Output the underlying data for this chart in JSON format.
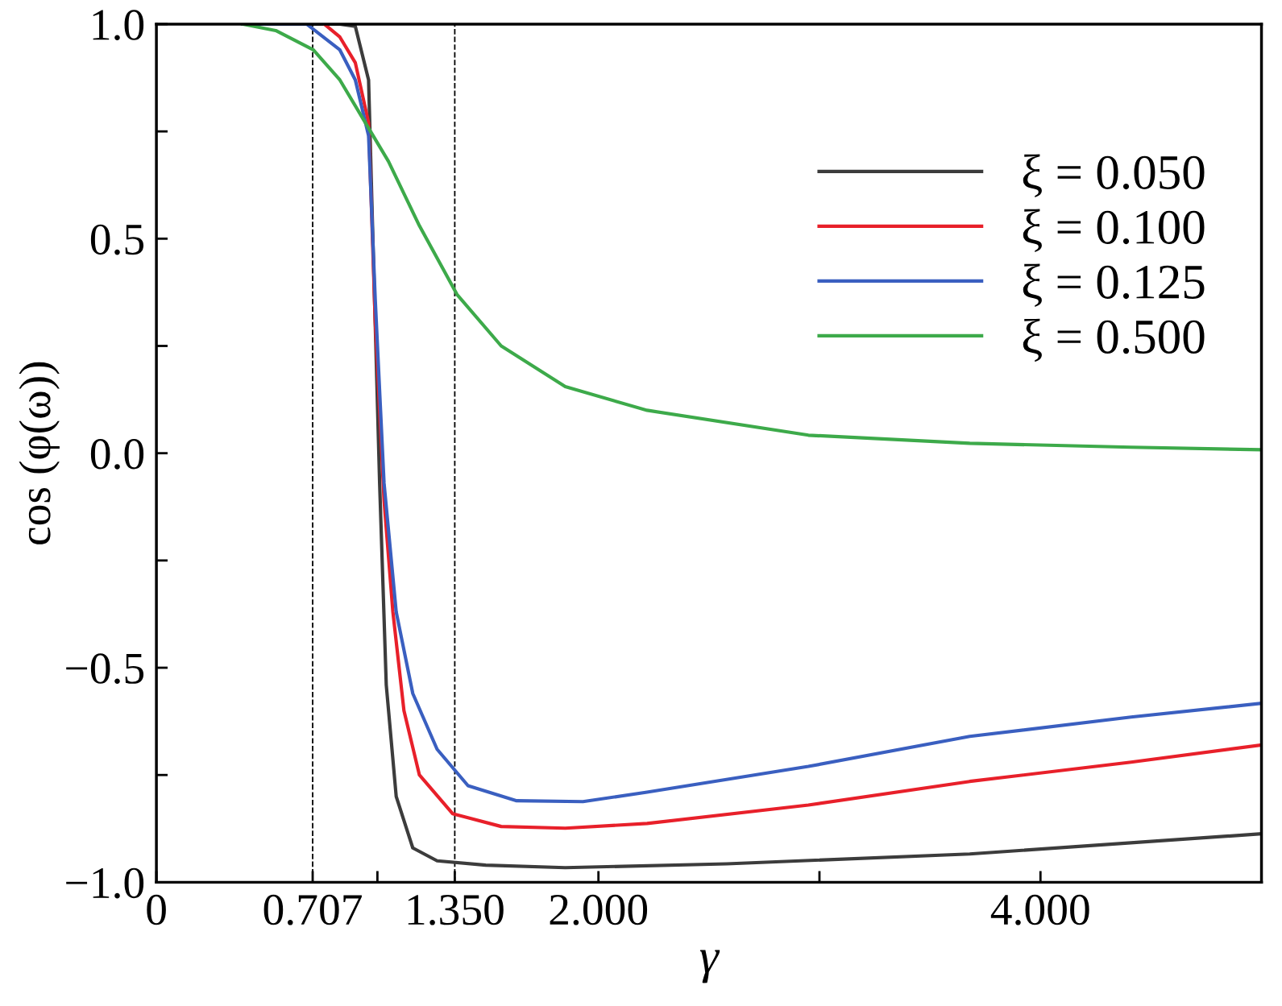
{
  "chart_data": {
    "type": "line",
    "xlabel": "γ",
    "ylabel": "cos (φ(ω))",
    "xlim": [
      0,
      5.0
    ],
    "ylim": [
      -1.0,
      1.0
    ],
    "xticks": [
      {
        "value": 0,
        "label": "0"
      },
      {
        "value": 0.707,
        "label": "0.707"
      },
      {
        "value": 1.0,
        "label": null
      },
      {
        "value": 1.35,
        "label": "1.350"
      },
      {
        "value": 2.0,
        "label": "2.000"
      },
      {
        "value": 3.0,
        "label": null
      },
      {
        "value": 4.0,
        "label": "4.000"
      }
    ],
    "yticks": [
      {
        "value": -1.0,
        "label": "−1.0"
      },
      {
        "value": -0.75,
        "label": null
      },
      {
        "value": -0.5,
        "label": "−0.5"
      },
      {
        "value": -0.25,
        "label": null
      },
      {
        "value": 0.0,
        "label": "0.0"
      },
      {
        "value": 0.25,
        "label": null
      },
      {
        "value": 0.5,
        "label": "0.5"
      },
      {
        "value": 0.75,
        "label": null
      },
      {
        "value": 1.0,
        "label": "1.0"
      }
    ],
    "grid": false,
    "legend": "top right",
    "marker": "none",
    "line_style": "solid",
    "ref_lines": [
      {
        "axis": "x",
        "value": 0.707,
        "label": null,
        "color": "#000000",
        "line_style": "dashed"
      },
      {
        "axis": "x",
        "value": 1.35,
        "label": null,
        "color": "#000000",
        "line_style": "dashed"
      }
    ],
    "series": [
      {
        "name": "ξ = 0.050",
        "color": "#3c3c3c",
        "x": [
          0.39,
          0.83,
          0.9,
          0.96,
          0.98,
          1.01,
          1.04,
          1.085,
          1.16,
          1.27,
          1.49,
          1.85,
          2.58,
          3.68,
          5.0
        ],
        "values": [
          1.0,
          1.0,
          0.995,
          0.87,
          0.49,
          -0.07,
          -0.54,
          -0.8,
          -0.92,
          -0.95,
          -0.96,
          -0.966,
          -0.957,
          -0.934,
          -0.887
        ]
      },
      {
        "name": "ξ = 0.100",
        "color": "#e8202a",
        "x": [
          0.76,
          0.83,
          0.9,
          0.96,
          0.99,
          1.03,
          1.07,
          1.12,
          1.19,
          1.34,
          1.56,
          1.85,
          2.22,
          2.95,
          3.68,
          4.41,
          5.0
        ],
        "values": [
          1.0,
          0.97,
          0.91,
          0.77,
          0.31,
          -0.11,
          -0.37,
          -0.6,
          -0.75,
          -0.84,
          -0.87,
          -0.874,
          -0.863,
          -0.82,
          -0.765,
          -0.72,
          -0.68
        ]
      },
      {
        "name": "ξ = 0.125",
        "color": "#3a5fc0",
        "x": [
          0.39,
          0.68,
          0.83,
          0.9,
          0.96,
          0.99,
          1.03,
          1.085,
          1.16,
          1.27,
          1.41,
          1.63,
          1.93,
          2.22,
          2.95,
          3.68,
          4.41,
          5.0
        ],
        "values": [
          1.0,
          1.0,
          0.94,
          0.87,
          0.74,
          0.36,
          -0.07,
          -0.37,
          -0.56,
          -0.69,
          -0.775,
          -0.81,
          -0.812,
          -0.79,
          -0.73,
          -0.66,
          -0.615,
          -0.583
        ]
      },
      {
        "name": "ξ = 0.500",
        "color": "#3daa4a",
        "x": [
          0.39,
          0.54,
          0.71,
          0.83,
          0.94,
          1.05,
          1.19,
          1.36,
          1.56,
          1.85,
          2.22,
          2.95,
          3.68,
          4.41,
          5.0
        ],
        "values": [
          1.0,
          0.985,
          0.94,
          0.87,
          0.775,
          0.68,
          0.53,
          0.37,
          0.25,
          0.155,
          0.1,
          0.042,
          0.023,
          0.014,
          0.008
        ]
      }
    ]
  }
}
